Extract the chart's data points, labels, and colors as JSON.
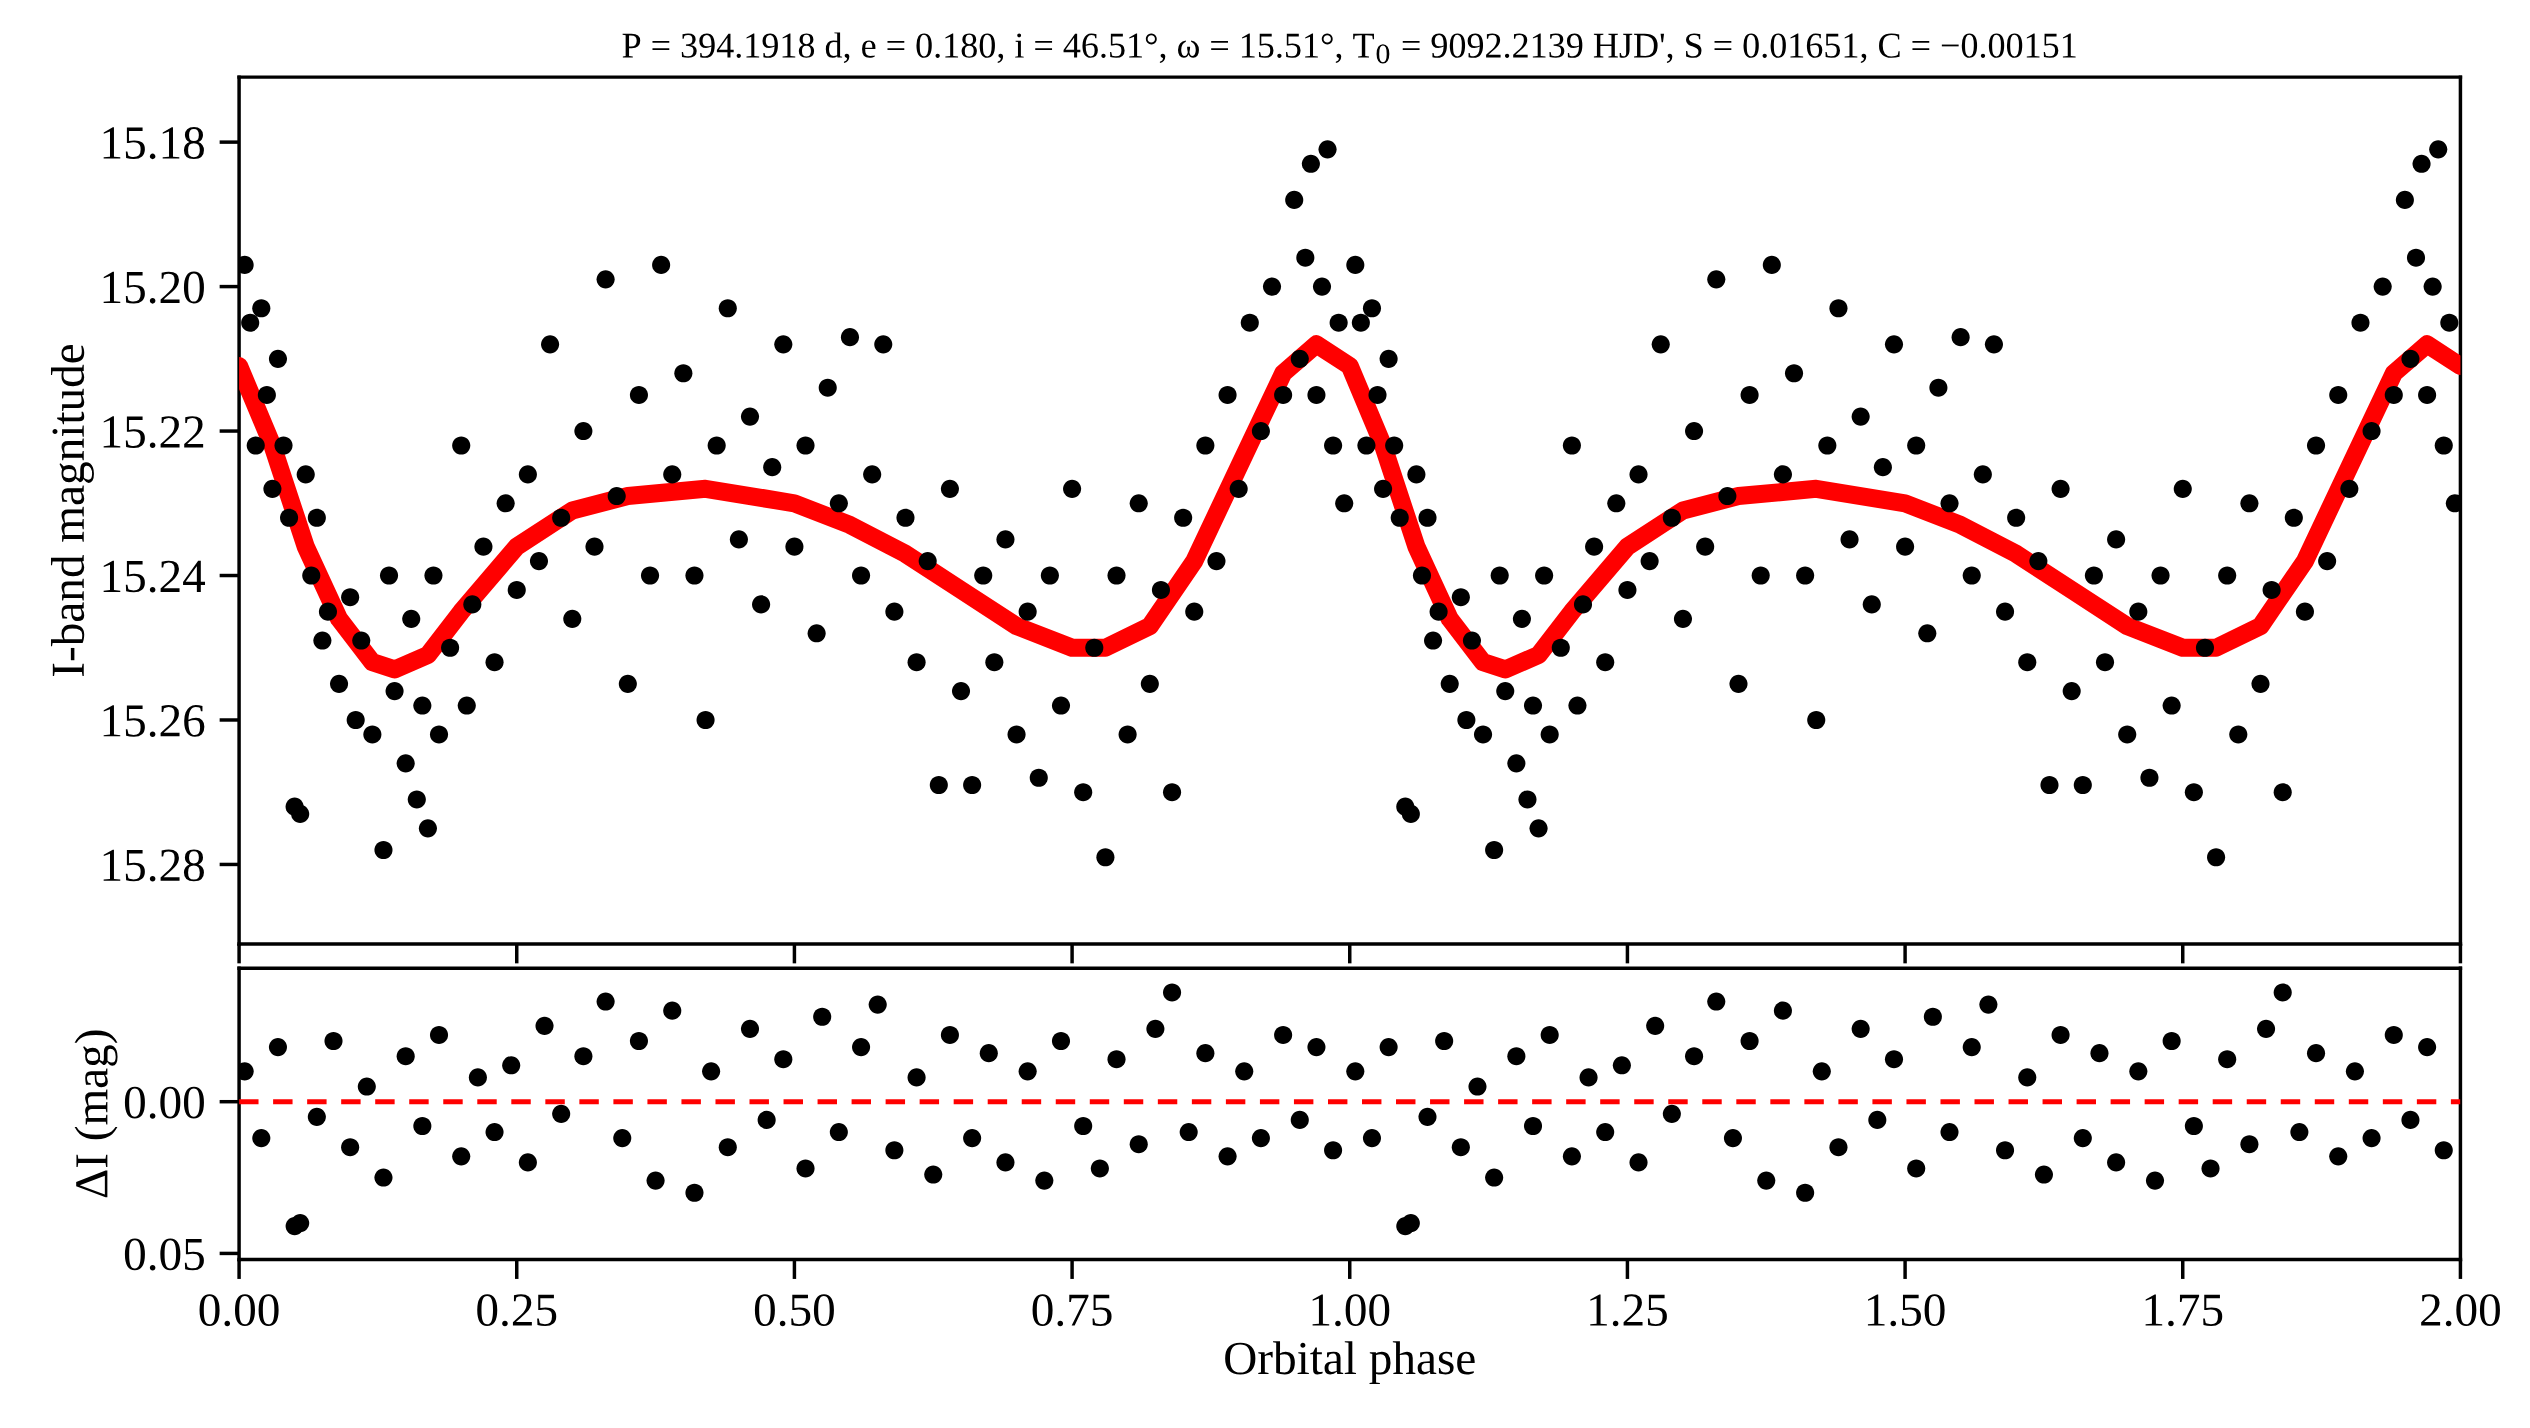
{
  "chart_data": [
    {
      "type": "scatter",
      "title": "P = 394.1918 d, e = 0.180, i = 46.51°, ω = 15.51°, T$_{0}$ = 9092.2139 HJD', S = 0.01651, C = −0.00151",
      "ylabel": "I-band magnitude",
      "xlim": [
        0,
        2
      ],
      "xticks": [
        {
          "value": 0,
          "label": null
        },
        {
          "value": 0.25,
          "label": null
        },
        {
          "value": 0.5,
          "label": null
        },
        {
          "value": 0.75,
          "label": null
        },
        {
          "value": 1,
          "label": null
        },
        {
          "value": 1.25,
          "label": null
        },
        {
          "value": 1.5,
          "label": null
        },
        {
          "value": 1.75,
          "label": null
        },
        {
          "value": 2,
          "label": null
        }
      ],
      "ylim": [
        15.291,
        15.171
      ],
      "yticks": [
        15.18,
        {
          "value": 15.2,
          "label": "15.20"
        },
        15.22,
        15.24,
        15.26,
        15.28
      ],
      "tick_labels": "y",
      "grid": false,
      "marker": "circle",
      "series": [
        {
          "color": "#000000",
          "x": [
            0.005,
            0.01,
            0.015,
            0.02,
            0.025,
            0.03,
            0.035,
            0.04,
            0.045,
            0.05,
            0.055,
            0.06,
            0.065,
            0.07,
            0.075,
            0.08,
            0.09,
            0.1,
            0.105,
            0.11,
            0.12,
            0.13,
            0.135,
            0.14,
            0.15,
            0.155,
            0.16,
            0.165,
            0.17,
            0.175,
            0.18,
            0.19,
            0.2,
            0.205,
            0.21,
            0.22,
            0.23,
            0.24,
            0.25,
            0.26,
            0.27,
            0.28,
            0.29,
            0.3,
            0.31,
            0.32,
            0.33,
            0.34,
            0.35,
            0.36,
            0.37,
            0.38,
            0.39,
            0.4,
            0.41,
            0.42,
            0.43,
            0.44,
            0.45,
            0.46,
            0.47,
            0.48,
            0.49,
            0.5,
            0.51,
            0.52,
            0.53,
            0.54,
            0.55,
            0.56,
            0.57,
            0.58,
            0.59,
            0.6,
            0.61,
            0.62,
            0.63,
            0.64,
            0.65,
            0.66,
            0.67,
            0.68,
            0.69,
            0.7,
            0.71,
            0.72,
            0.73,
            0.74,
            0.75,
            0.76,
            0.77,
            0.78,
            0.79,
            0.8,
            0.81,
            0.82,
            0.83,
            0.84,
            0.85,
            0.86,
            0.87,
            0.88,
            0.89,
            0.9,
            0.91,
            0.92,
            0.93,
            0.94,
            0.95,
            0.955,
            0.96,
            0.965,
            0.97,
            0.975,
            0.98,
            0.985,
            0.99,
            0.995,
            1.005,
            1.01,
            1.015,
            1.02,
            1.025,
            1.03,
            1.035,
            1.04,
            1.045,
            1.05,
            1.055,
            1.06,
            1.065,
            1.07,
            1.075,
            1.08,
            1.09,
            1.1,
            1.105,
            1.11,
            1.12,
            1.13,
            1.135,
            1.14,
            1.15,
            1.155,
            1.16,
            1.165,
            1.17,
            1.175,
            1.18,
            1.19,
            1.2,
            1.205,
            1.21,
            1.22,
            1.23,
            1.24,
            1.25,
            1.26,
            1.27,
            1.28,
            1.29,
            1.3,
            1.31,
            1.32,
            1.33,
            1.34,
            1.35,
            1.36,
            1.37,
            1.38,
            1.39,
            1.4,
            1.41,
            1.42,
            1.43,
            1.44,
            1.45,
            1.46,
            1.47,
            1.48,
            1.49,
            1.5,
            1.51,
            1.52,
            1.53,
            1.54,
            1.55,
            1.56,
            1.57,
            1.58,
            1.59,
            1.6,
            1.61,
            1.62,
            1.63,
            1.64,
            1.65,
            1.66,
            1.67,
            1.68,
            1.69,
            1.7,
            1.71,
            1.72,
            1.73,
            1.74,
            1.75,
            1.76,
            1.77,
            1.78,
            1.79,
            1.8,
            1.81,
            1.82,
            1.83,
            1.84,
            1.85,
            1.86,
            1.87,
            1.88,
            1.89,
            1.9,
            1.91,
            1.92,
            1.93,
            1.94,
            1.95,
            1.955,
            1.96,
            1.965,
            1.97,
            1.975,
            1.98,
            1.985,
            1.99,
            1.995
          ],
          "values": [
            15.197,
            15.205,
            15.222,
            15.203,
            15.215,
            15.228,
            15.21,
            15.222,
            15.232,
            15.272,
            15.273,
            15.226,
            15.24,
            15.232,
            15.249,
            15.245,
            15.255,
            15.243,
            15.26,
            15.249,
            15.262,
            15.278,
            15.24,
            15.256,
            15.266,
            15.246,
            15.271,
            15.258,
            15.275,
            15.24,
            15.262,
            15.25,
            15.222,
            15.258,
            15.244,
            15.236,
            15.252,
            15.23,
            15.242,
            15.226,
            15.238,
            15.208,
            15.232,
            15.246,
            15.22,
            15.236,
            15.199,
            15.229,
            15.255,
            15.215,
            15.24,
            15.197,
            15.226,
            15.212,
            15.24,
            15.26,
            15.222,
            15.203,
            15.235,
            15.218,
            15.244,
            15.225,
            15.208,
            15.236,
            15.222,
            15.248,
            15.214,
            15.23,
            15.207,
            15.24,
            15.226,
            15.208,
            15.245,
            15.232,
            15.252,
            15.238,
            15.269,
            15.228,
            15.256,
            15.269,
            15.24,
            15.252,
            15.235,
            15.262,
            15.245,
            15.268,
            15.24,
            15.258,
            15.228,
            15.27,
            15.25,
            15.279,
            15.24,
            15.262,
            15.23,
            15.255,
            15.242,
            15.27,
            15.232,
            15.245,
            15.222,
            15.238,
            15.215,
            15.228,
            15.205,
            15.22,
            15.2,
            15.215,
            15.188,
            15.21,
            15.196,
            15.183,
            15.215,
            15.2,
            15.181,
            15.222,
            15.205,
            15.23,
            15.197,
            15.205,
            15.222,
            15.203,
            15.215,
            15.228,
            15.21,
            15.222,
            15.232,
            15.272,
            15.273,
            15.226,
            15.24,
            15.232,
            15.249,
            15.245,
            15.255,
            15.243,
            15.26,
            15.249,
            15.262,
            15.278,
            15.24,
            15.256,
            15.266,
            15.246,
            15.271,
            15.258,
            15.275,
            15.24,
            15.262,
            15.25,
            15.222,
            15.258,
            15.244,
            15.236,
            15.252,
            15.23,
            15.242,
            15.226,
            15.238,
            15.208,
            15.232,
            15.246,
            15.22,
            15.236,
            15.199,
            15.229,
            15.255,
            15.215,
            15.24,
            15.197,
            15.226,
            15.212,
            15.24,
            15.26,
            15.222,
            15.203,
            15.235,
            15.218,
            15.244,
            15.225,
            15.208,
            15.236,
            15.222,
            15.248,
            15.214,
            15.23,
            15.207,
            15.24,
            15.226,
            15.208,
            15.245,
            15.232,
            15.252,
            15.238,
            15.269,
            15.228,
            15.256,
            15.269,
            15.24,
            15.252,
            15.235,
            15.262,
            15.245,
            15.268,
            15.24,
            15.258,
            15.228,
            15.27,
            15.25,
            15.279,
            15.24,
            15.262,
            15.23,
            15.255,
            15.242,
            15.27,
            15.232,
            15.245,
            15.222,
            15.238,
            15.215,
            15.228,
            15.205,
            15.22,
            15.2,
            15.215,
            15.188,
            15.21,
            15.196,
            15.183,
            15.215,
            15.2,
            15.181,
            15.222,
            15.205,
            15.23
          ]
        },
        {
          "type": "line",
          "color": "#ff0000",
          "marker": "none",
          "line_style": "solid",
          "x": [
            0,
            0.03,
            0.06,
            0.09,
            0.12,
            0.14,
            0.17,
            0.2,
            0.25,
            0.3,
            0.35,
            0.42,
            0.5,
            0.55,
            0.6,
            0.65,
            0.7,
            0.75,
            0.78,
            0.82,
            0.86,
            0.9,
            0.94,
            0.97,
            1,
            1.03,
            1.06,
            1.09,
            1.12,
            1.14,
            1.17,
            1.2,
            1.25,
            1.3,
            1.35,
            1.42,
            1.5,
            1.55,
            1.6,
            1.65,
            1.7,
            1.75,
            1.78,
            1.82,
            1.86,
            1.9,
            1.94,
            1.97,
            2
          ],
          "values": [
            15.211,
            15.222,
            15.236,
            15.246,
            15.252,
            15.253,
            15.251,
            15.245,
            15.236,
            15.231,
            15.229,
            15.228,
            15.23,
            15.233,
            15.237,
            15.242,
            15.247,
            15.25,
            15.25,
            15.247,
            15.238,
            15.225,
            15.212,
            15.208,
            15.211,
            15.222,
            15.236,
            15.246,
            15.252,
            15.253,
            15.251,
            15.245,
            15.236,
            15.231,
            15.229,
            15.228,
            15.23,
            15.233,
            15.237,
            15.242,
            15.247,
            15.25,
            15.25,
            15.247,
            15.238,
            15.225,
            15.212,
            15.208,
            15.211
          ]
        }
      ]
    },
    {
      "type": "scatter",
      "xlabel": "Orbital phase",
      "ylabel": "ΔI (mag)",
      "xlim": [
        0,
        2
      ],
      "xticks": [
        {
          "value": 0,
          "label": "0.00"
        },
        {
          "value": 0.25,
          "label": "0.25"
        },
        {
          "value": 0.5,
          "label": "0.50"
        },
        {
          "value": 0.75,
          "label": "0.75"
        },
        {
          "value": 1,
          "label": "1.00"
        },
        {
          "value": 1.25,
          "label": "1.25"
        },
        {
          "value": 1.5,
          "label": "1.50"
        },
        {
          "value": 1.75,
          "label": "1.75"
        },
        {
          "value": 2,
          "label": "2.00"
        }
      ],
      "ylim": [
        0.052,
        -0.044
      ],
      "yticks": [
        {
          "value": 0,
          "label": "0.00"
        },
        {
          "value": 0.05,
          "label": "0.05"
        }
      ],
      "grid": false,
      "marker": "circle",
      "ref_lines": [
        {
          "axis": "y",
          "value": 0,
          "color": "#ff0000",
          "line_style": "dashed"
        }
      ],
      "series": [
        {
          "color": "#000000",
          "x": [
            0.005,
            0.02,
            0.035,
            0.05,
            0.055,
            0.07,
            0.085,
            0.1,
            0.115,
            0.13,
            0.15,
            0.165,
            0.18,
            0.2,
            0.215,
            0.23,
            0.245,
            0.26,
            0.275,
            0.29,
            0.31,
            0.33,
            0.345,
            0.36,
            0.375,
            0.39,
            0.41,
            0.425,
            0.44,
            0.46,
            0.475,
            0.49,
            0.51,
            0.525,
            0.54,
            0.56,
            0.575,
            0.59,
            0.61,
            0.625,
            0.64,
            0.66,
            0.675,
            0.69,
            0.71,
            0.725,
            0.74,
            0.76,
            0.775,
            0.79,
            0.81,
            0.825,
            0.84,
            0.855,
            0.87,
            0.89,
            0.905,
            0.92,
            0.94,
            0.955,
            0.97,
            0.985,
            1.005,
            1.02,
            1.035,
            1.05,
            1.055,
            1.07,
            1.085,
            1.1,
            1.115,
            1.13,
            1.15,
            1.165,
            1.18,
            1.2,
            1.215,
            1.23,
            1.245,
            1.26,
            1.275,
            1.29,
            1.31,
            1.33,
            1.345,
            1.36,
            1.375,
            1.39,
            1.41,
            1.425,
            1.44,
            1.46,
            1.475,
            1.49,
            1.51,
            1.525,
            1.54,
            1.56,
            1.575,
            1.59,
            1.61,
            1.625,
            1.64,
            1.66,
            1.675,
            1.69,
            1.71,
            1.725,
            1.74,
            1.76,
            1.775,
            1.79,
            1.81,
            1.825,
            1.84,
            1.855,
            1.87,
            1.89,
            1.905,
            1.92,
            1.94,
            1.955,
            1.97,
            1.985
          ],
          "values": [
            -0.01,
            0.012,
            -0.018,
            0.041,
            0.04,
            0.005,
            -0.02,
            0.015,
            -0.005,
            0.025,
            -0.015,
            0.008,
            -0.022,
            0.018,
            -0.008,
            0.01,
            -0.012,
            0.02,
            -0.025,
            0.004,
            -0.015,
            -0.033,
            0.012,
            -0.02,
            0.026,
            -0.03,
            0.03,
            -0.01,
            0.015,
            -0.024,
            0.006,
            -0.014,
            0.022,
            -0.028,
            0.01,
            -0.018,
            -0.032,
            0.016,
            -0.008,
            0.024,
            -0.022,
            0.012,
            -0.016,
            0.02,
            -0.01,
            0.026,
            -0.02,
            0.008,
            0.022,
            -0.014,
            0.014,
            -0.024,
            -0.036,
            0.01,
            -0.016,
            0.018,
            -0.01,
            0.012,
            -0.022,
            0.006,
            -0.018,
            0.016,
            -0.01,
            0.012,
            -0.018,
            0.041,
            0.04,
            0.005,
            -0.02,
            0.015,
            -0.005,
            0.025,
            -0.015,
            0.008,
            -0.022,
            0.018,
            -0.008,
            0.01,
            -0.012,
            0.02,
            -0.025,
            0.004,
            -0.015,
            -0.033,
            0.012,
            -0.02,
            0.026,
            -0.03,
            0.03,
            -0.01,
            0.015,
            -0.024,
            0.006,
            -0.014,
            0.022,
            -0.028,
            0.01,
            -0.018,
            -0.032,
            0.016,
            -0.008,
            0.024,
            -0.022,
            0.012,
            -0.016,
            0.02,
            -0.01,
            0.026,
            -0.02,
            0.008,
            0.022,
            -0.014,
            0.014,
            -0.024,
            -0.036,
            0.01,
            -0.016,
            0.018,
            -0.01,
            0.012,
            -0.022,
            0.006,
            -0.018,
            0.016
          ]
        }
      ]
    }
  ]
}
